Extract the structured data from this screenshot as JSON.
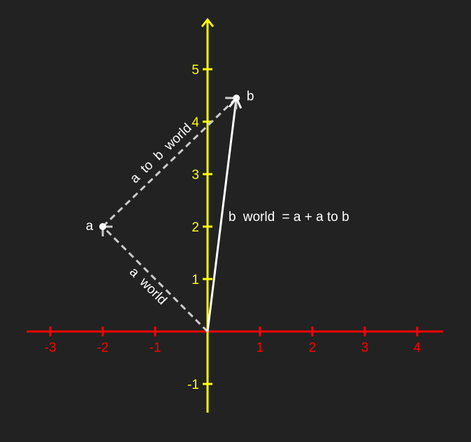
{
  "colors": {
    "background": "#222222",
    "x_axis": "#ff0000",
    "y_axis": "#ffff00",
    "vector": "#ffffff",
    "dashed": "#cccccc",
    "label": "#ffffff"
  },
  "axes": {
    "x_ticks": [
      {
        "value": -3,
        "label": "-3"
      },
      {
        "value": -2,
        "label": "-2"
      },
      {
        "value": -1,
        "label": "-1"
      },
      {
        "value": 1,
        "label": "1"
      },
      {
        "value": 2,
        "label": "2"
      },
      {
        "value": 3,
        "label": "3"
      },
      {
        "value": 4,
        "label": "4"
      }
    ],
    "y_ticks": [
      {
        "value": -1,
        "label": "-1"
      },
      {
        "value": 1,
        "label": "1"
      },
      {
        "value": 2,
        "label": "2"
      },
      {
        "value": 3,
        "label": "3"
      },
      {
        "value": 4,
        "label": "4"
      },
      {
        "value": 5,
        "label": "5"
      }
    ],
    "x_range": [
      -3.4,
      4.5
    ],
    "y_range": [
      -1.5,
      5.9
    ]
  },
  "points": {
    "origin": {
      "x": 0,
      "y": 0
    },
    "a": {
      "x": -2,
      "y": 2,
      "label": "a"
    },
    "b": {
      "x": 0.55,
      "y": 4.45,
      "label": "b"
    }
  },
  "labels": {
    "a_world": {
      "var": "a",
      "word": "world"
    },
    "a_to_b_world": {
      "var1": "a",
      "mid": "to",
      "var2": "b",
      "word": "world"
    },
    "b_world": {
      "var": "b",
      "word": "world",
      "rest": "= a + a to b"
    }
  }
}
